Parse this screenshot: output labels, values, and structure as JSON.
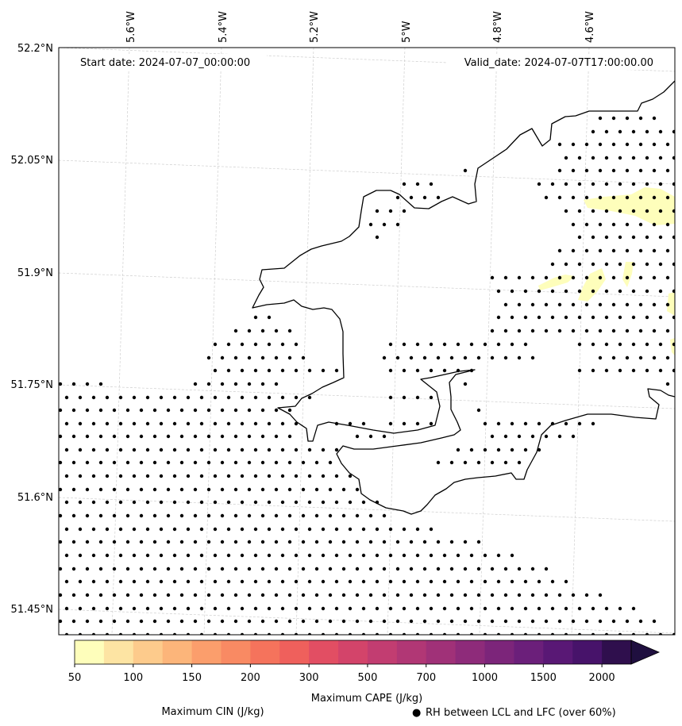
{
  "annotations": {
    "start_date": "Start date: 2024-07-07_00:00:00",
    "valid_date": "Valid_date: 2024-07-07T17:00:00.00"
  },
  "axes": {
    "longitude_labels": [
      "5.6°W",
      "5.4°W",
      "5.2°W",
      "5°W",
      "4.8°W",
      "4.6°W"
    ],
    "latitude_labels": [
      "52.2°N",
      "52.05°N",
      "51.9°N",
      "51.75°N",
      "51.6°N",
      "51.45°N"
    ]
  },
  "colorbar": {
    "label": "Maximum CAPE (J/kg)",
    "tick_labels": [
      "50",
      "100",
      "150",
      "200",
      "300",
      "500",
      "700",
      "1000",
      "1500",
      "2000"
    ],
    "levels": [
      50,
      75,
      100,
      125,
      150,
      175,
      200,
      250,
      300,
      400,
      500,
      600,
      700,
      850,
      1000,
      1250,
      1500,
      1750,
      2000,
      2500
    ],
    "colors": [
      "#fefebb",
      "#fde4a3",
      "#fdcb8c",
      "#fcb57a",
      "#fb9e6c",
      "#f98a63",
      "#f5735c",
      "#ef605c",
      "#e24e63",
      "#d3446a",
      "#c23d71",
      "#b13775",
      "#a03178",
      "#8e2b7a",
      "#7c257a",
      "#6b1f7a",
      "#591875",
      "#47136a",
      "#2f0f4d",
      "#1f0f3f"
    ],
    "extend": "max"
  },
  "legend": {
    "cin_label": "Maximum CIN (J/kg)",
    "cin_color": "#ff0000",
    "rh_marker": "●",
    "rh_label": "RH between LCL and LFC (over 60%)"
  },
  "map": {
    "region": "Pembrokeshire / Carmarthen Bay, Wales",
    "cape_fill_color": "#fefebb",
    "gridlines": true,
    "stipple_marker": "filled-dot",
    "coastline_color": "#000000"
  }
}
